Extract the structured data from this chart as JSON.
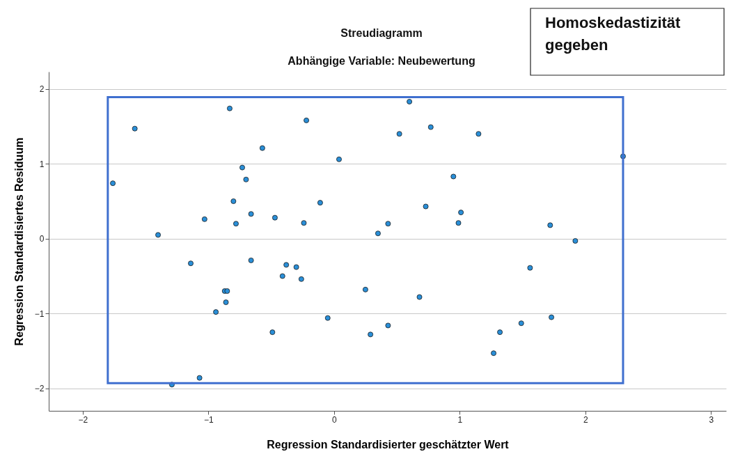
{
  "chart_data": {
    "type": "scatter",
    "title": "Streudiagramm",
    "subtitle": "Abhängige Variable: Neubewertung",
    "xlabel": "Regression Standardisierter geschätzter Wert",
    "ylabel": "Regression Standardisiertes Residuum",
    "annotations": [
      "Homoskedastizität gegeben"
    ],
    "x": [
      -1.76,
      -1.585,
      -1.4,
      -1.29,
      -1.14,
      -1.07,
      -1.03,
      -0.94,
      -0.87,
      -0.85,
      -0.86,
      -0.83,
      -0.8,
      -0.78,
      -0.73,
      -0.7,
      -0.66,
      -0.66,
      -0.57,
      -0.49,
      -0.47,
      -0.41,
      -0.38,
      -0.3,
      -0.26,
      -0.24,
      -0.22,
      -0.11,
      -0.05,
      0.04,
      0.25,
      0.29,
      0.35,
      0.43,
      0.43,
      0.52,
      0.6,
      0.68,
      0.73,
      0.77,
      0.95,
      0.99,
      1.01,
      1.15,
      1.27,
      1.32,
      1.49,
      1.56,
      1.72,
      1.73,
      1.92,
      2.3
    ],
    "series": [
      {
        "color": "#2a8fd8",
        "values": [
          0.74,
          1.47,
          0.05,
          -1.95,
          -0.33,
          -1.86,
          0.26,
          -0.98,
          -0.7,
          -0.7,
          -0.85,
          1.74,
          0.5,
          0.2,
          0.95,
          0.79,
          0.33,
          -0.29,
          1.21,
          -1.25,
          0.28,
          -0.5,
          -0.35,
          -0.38,
          -0.54,
          0.21,
          1.58,
          0.48,
          -1.06,
          1.06,
          -0.68,
          -1.28,
          0.07,
          0.2,
          -1.16,
          1.4,
          1.83,
          -0.78,
          0.43,
          1.49,
          0.83,
          0.21,
          0.35,
          1.4,
          -1.53,
          -1.25,
          -1.13,
          -0.39,
          0.18,
          -1.05,
          -0.03,
          1.1
        ]
      }
    ],
    "xlim": [
      -2.27,
      3.12
    ],
    "ylim": [
      -2.3,
      2.23
    ],
    "xticks": [
      -2,
      -1,
      0,
      1,
      2,
      3
    ],
    "yticks": [
      -2,
      -1,
      0,
      1,
      2
    ],
    "grid": "y",
    "marker": "circle"
  }
}
